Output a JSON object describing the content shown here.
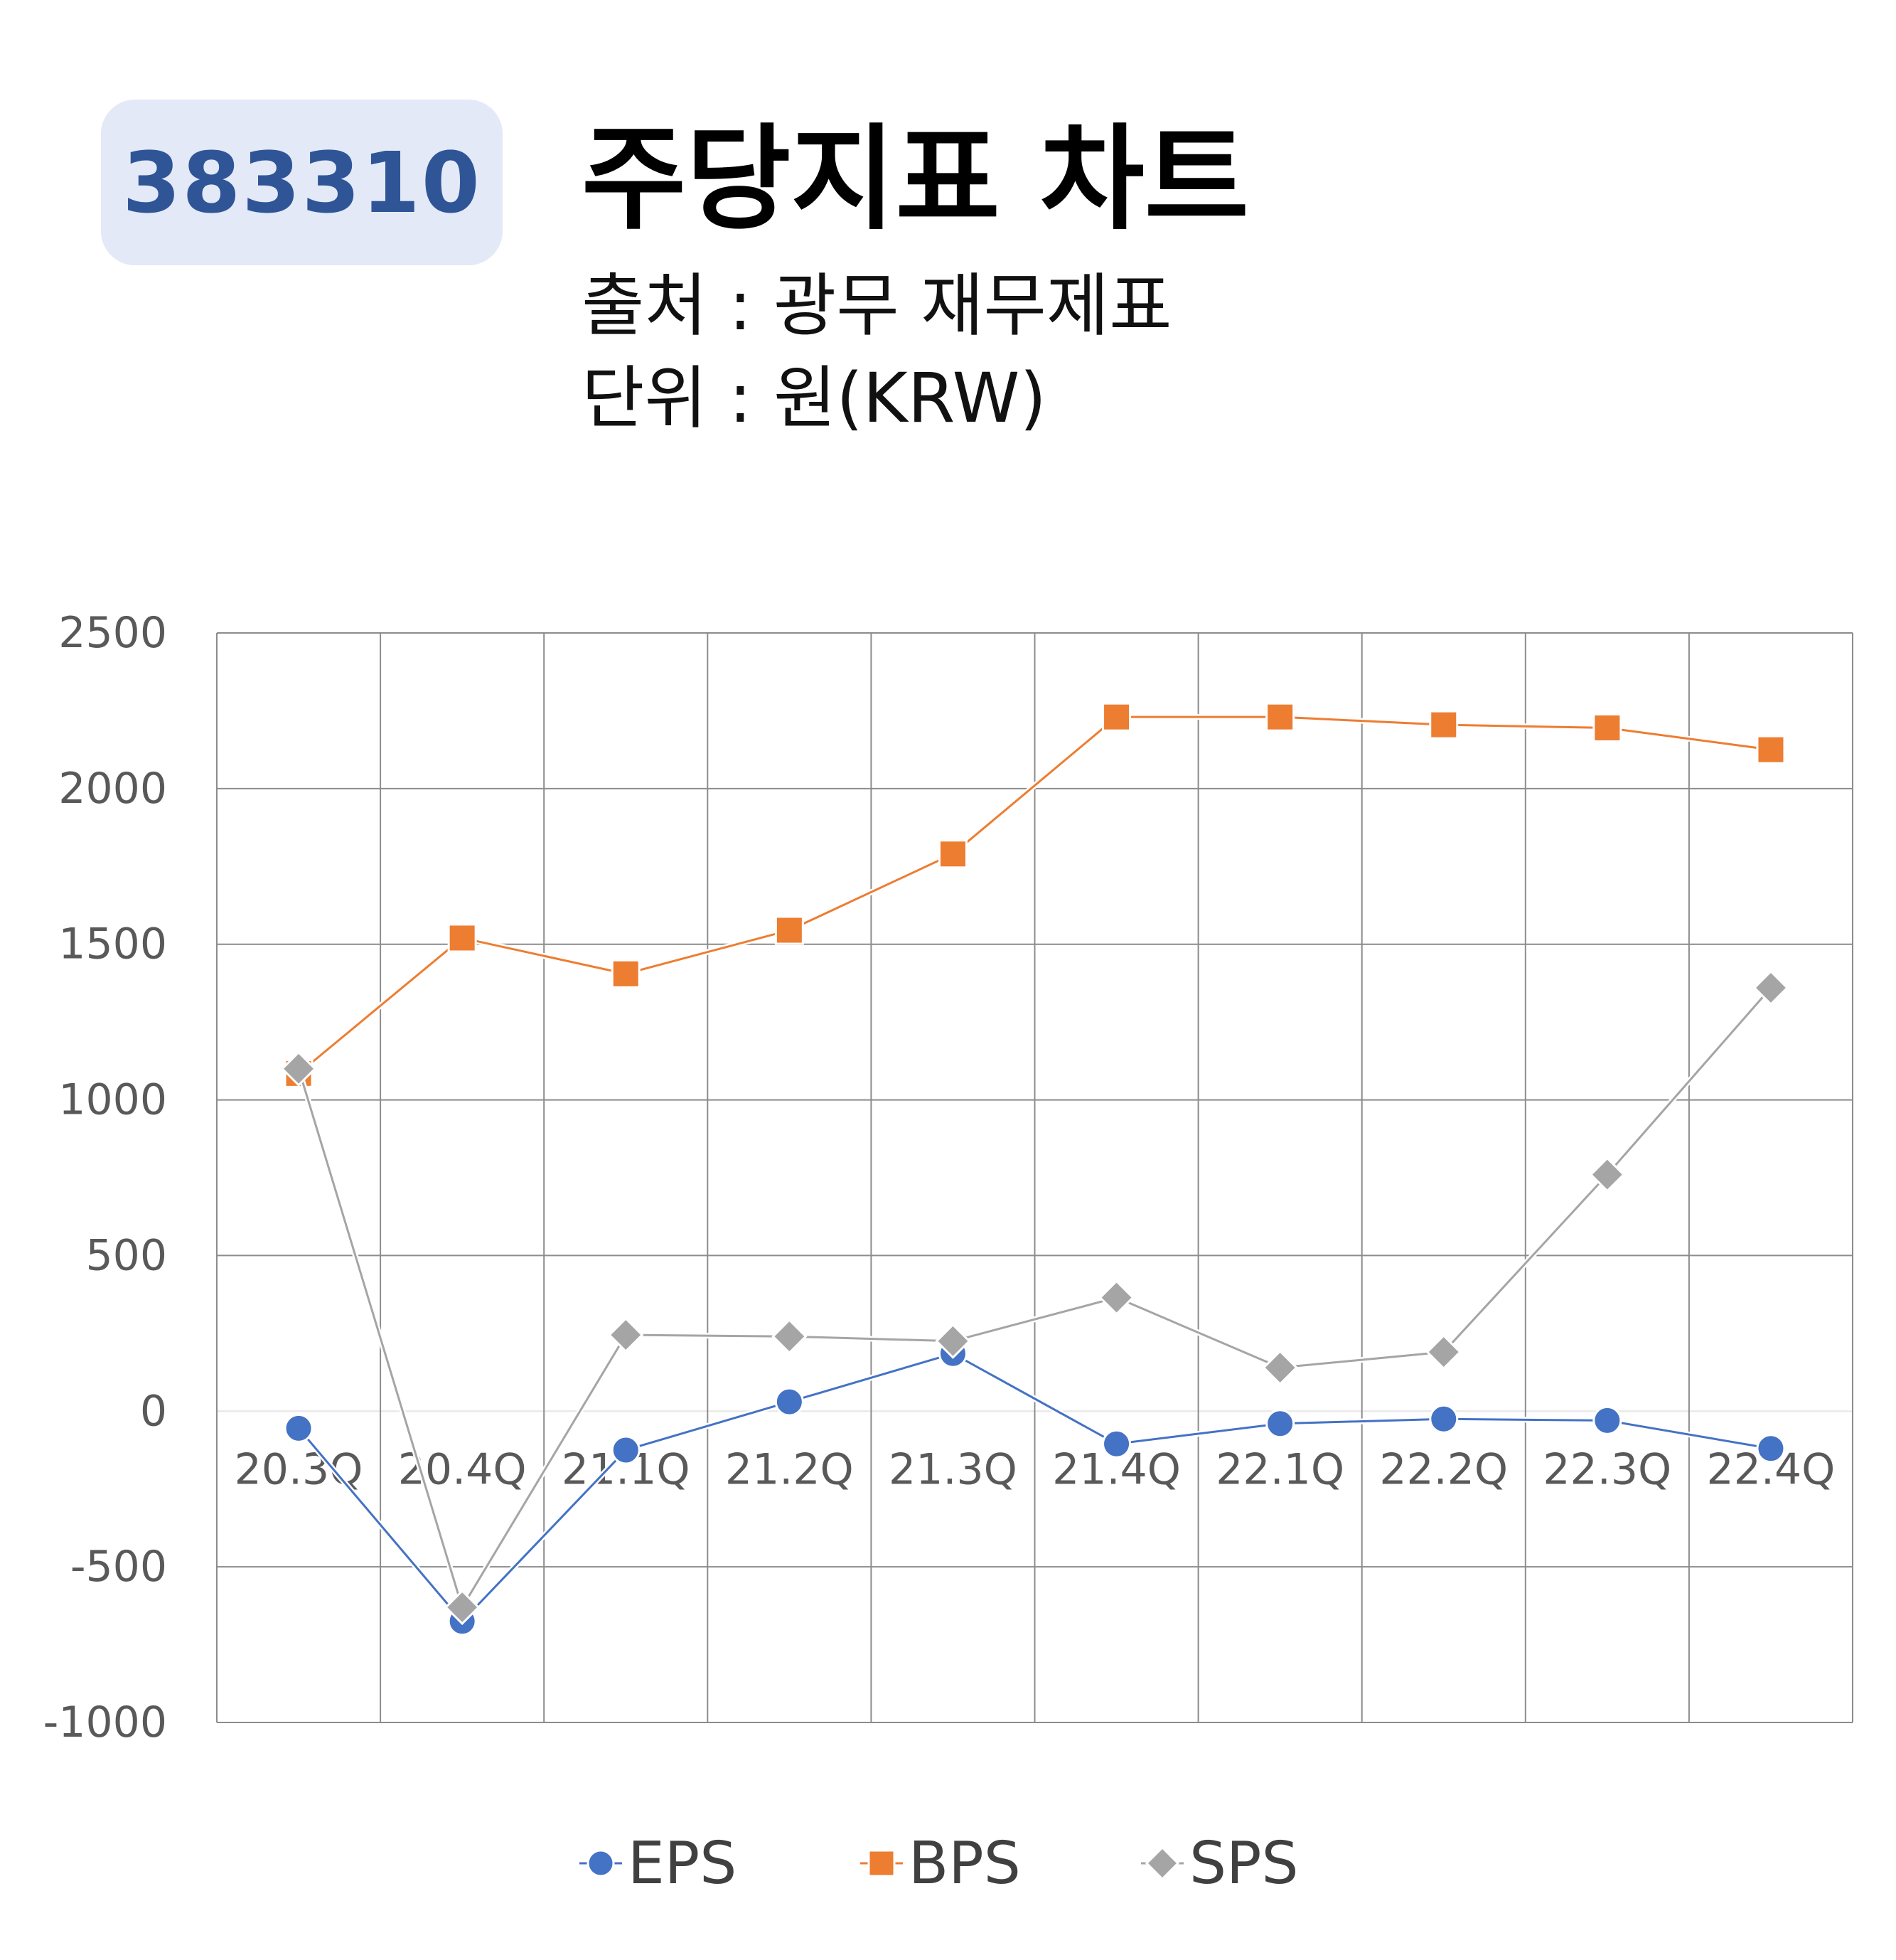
{
  "header": {
    "code": "383310",
    "title": "주당지표 차트",
    "source": "출처 : 광무 재무제표",
    "unit": "단위 : 원(KRW)"
  },
  "chart_data": {
    "type": "line",
    "categories": [
      "20.3Q",
      "20.4Q",
      "21.1Q",
      "21.2Q",
      "21.3Q",
      "21.4Q",
      "22.1Q",
      "22.2Q",
      "22.3Q",
      "22.4Q"
    ],
    "series": [
      {
        "name": "EPS",
        "color": "#4472c4",
        "marker": "circle",
        "values": [
          -55,
          -675,
          -125,
          30,
          185,
          -105,
          -40,
          -25,
          -30,
          -120
        ]
      },
      {
        "name": "BPS",
        "color": "#ed7d31",
        "marker": "square",
        "values": [
          1085,
          1520,
          1405,
          1545,
          1790,
          2230,
          2230,
          2205,
          2195,
          2125
        ]
      },
      {
        "name": "SPS",
        "color": "#a5a5a5",
        "marker": "diamond",
        "values": [
          1100,
          -630,
          245,
          240,
          225,
          365,
          140,
          190,
          760,
          1360
        ]
      }
    ],
    "ylim": [
      -1000,
      2500
    ],
    "yticks": [
      "2500",
      "2000",
      "1500",
      "1000",
      "500",
      "0",
      "-500",
      "-1000"
    ],
    "grid": true,
    "legend_position": "bottom"
  }
}
